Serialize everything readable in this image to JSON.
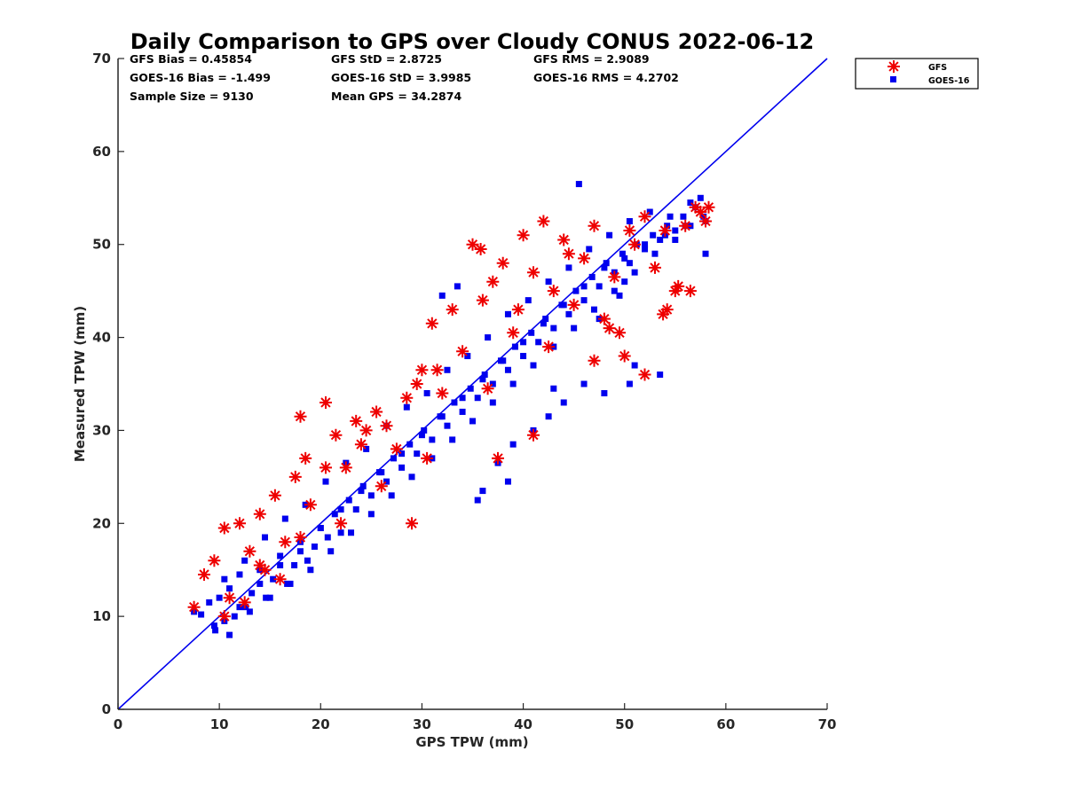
{
  "chart_data": {
    "type": "scatter",
    "title": "Daily Comparison to GPS over Cloudy CONUS 2022-06-12",
    "xlabel": "GPS TPW (mm)",
    "ylabel": "Measured TPW (mm)",
    "xlim": [
      0,
      70
    ],
    "ylim": [
      0,
      70
    ],
    "xticks": [
      "0",
      "10",
      "20",
      "30",
      "40",
      "50",
      "60",
      "70"
    ],
    "yticks": [
      "0",
      "10",
      "20",
      "30",
      "40",
      "50",
      "60",
      "70"
    ],
    "grid": false,
    "legend_position": "top-right-outside",
    "reference_line": {
      "from": [
        0,
        0
      ],
      "to": [
        70,
        70
      ],
      "color": "#0000ee"
    },
    "stats": [
      [
        "GFS Bias = 0.45854",
        "GFS StD = 2.8725",
        "GFS RMS = 2.9089"
      ],
      [
        "GOES-16 Bias = -1.499",
        "GOES-16 StD = 3.9985",
        "GOES-16 RMS = 4.2702"
      ],
      [
        "Sample Size = 9130",
        "Mean GPS = 34.2874",
        ""
      ]
    ],
    "series": [
      {
        "name": "GOES-16",
        "marker": "square",
        "color": "#0000ee",
        "x": [
          7.5,
          8.2,
          9.0,
          9.6,
          10.0,
          10.5,
          11.0,
          11.5,
          12.0,
          12.6,
          13.2,
          14.0,
          14.6,
          15.3,
          16.0,
          16.7,
          17.4,
          18.0,
          18.7,
          19.4,
          20.0,
          20.7,
          21.4,
          22.0,
          22.8,
          23.5,
          24.2,
          25.0,
          25.8,
          26.5,
          27.2,
          28.0,
          28.8,
          29.5,
          30.2,
          31.0,
          31.8,
          32.5,
          33.2,
          34.0,
          34.8,
          35.5,
          36.2,
          37.0,
          37.8,
          38.5,
          39.2,
          40.0,
          40.8,
          41.5,
          42.2,
          43.0,
          43.8,
          44.5,
          45.2,
          46.0,
          46.8,
          47.5,
          48.2,
          49.0,
          49.8,
          50.5,
          51.2,
          52.0,
          52.8,
          53.5,
          54.2,
          55.0,
          55.8,
          56.5,
          57.0,
          57.8,
          58.0,
          10.5,
          12.5,
          14.5,
          16.5,
          18.5,
          20.5,
          22.5,
          24.5,
          26.5,
          28.5,
          30.5,
          32.5,
          34.5,
          36.5,
          38.5,
          40.5,
          42.5,
          44.5,
          46.5,
          48.5,
          50.5,
          52.5,
          54.5,
          56.5,
          11.0,
          13.0,
          15.0,
          17.0,
          19.0,
          21.0,
          23.0,
          25.0,
          27.0,
          29.0,
          31.0,
          33.0,
          35.0,
          37.0,
          39.0,
          41.0,
          43.0,
          45.0,
          47.0,
          49.0,
          51.0,
          53.0,
          55.0,
          57.5,
          9.5,
          12.0,
          14.0,
          16.0,
          18.0,
          20.0,
          22.0,
          24.0,
          26.0,
          28.0,
          30.0,
          32.0,
          34.0,
          36.0,
          38.0,
          40.0,
          42.0,
          44.0,
          46.0,
          48.0,
          50.0,
          52.0,
          54.0,
          56.0,
          58.0,
          45.5,
          46.0,
          43.0,
          48.0,
          50.5,
          51.0,
          53.5,
          42.5,
          38.5,
          35.5,
          37.5,
          36.0,
          39.0,
          47.5,
          49.5,
          50.0,
          44.0,
          41.0,
          33.5,
          32.0
        ],
        "y": [
          10.5,
          10.2,
          11.5,
          8.5,
          12.0,
          9.5,
          13.0,
          10.0,
          14.5,
          11.0,
          12.5,
          15.0,
          12.0,
          14.0,
          16.5,
          13.5,
          15.5,
          18.0,
          16.0,
          17.5,
          19.5,
          18.5,
          21.0,
          19.0,
          22.5,
          21.5,
          24.0,
          23.0,
          25.5,
          24.5,
          27.0,
          26.0,
          28.5,
          27.5,
          30.0,
          29.0,
          31.5,
          30.5,
          33.0,
          32.0,
          34.5,
          33.5,
          36.0,
          35.0,
          37.5,
          36.5,
          39.0,
          38.0,
          40.5,
          39.5,
          42.0,
          41.0,
          43.5,
          42.5,
          45.0,
          44.0,
          46.5,
          45.5,
          48.0,
          47.0,
          49.0,
          48.0,
          50.0,
          49.5,
          51.0,
          50.5,
          52.0,
          51.5,
          53.0,
          52.0,
          54.0,
          53.0,
          52.5,
          14.0,
          16.0,
          18.5,
          20.5,
          22.0,
          24.5,
          26.5,
          28.0,
          30.5,
          32.5,
          34.0,
          36.5,
          38.0,
          40.0,
          42.5,
          44.0,
          46.0,
          47.5,
          49.5,
          51.0,
          52.5,
          53.5,
          53.0,
          54.5,
          8.0,
          10.5,
          12.0,
          13.5,
          15.0,
          17.0,
          19.0,
          21.0,
          23.0,
          25.0,
          27.0,
          29.0,
          31.0,
          33.0,
          35.0,
          37.0,
          39.0,
          41.0,
          43.0,
          45.0,
          47.0,
          49.0,
          50.5,
          55.0,
          9.0,
          11.0,
          13.5,
          15.5,
          17.0,
          19.5,
          21.5,
          23.5,
          25.5,
          27.5,
          29.5,
          31.5,
          33.5,
          35.5,
          37.5,
          39.5,
          41.5,
          43.5,
          45.5,
          47.5,
          48.5,
          50.0,
          51.0,
          52.0,
          49.0,
          56.5,
          35.0,
          34.5,
          34.0,
          35.0,
          37.0,
          36.0,
          31.5,
          24.5,
          22.5,
          26.5,
          23.5,
          28.5,
          42.0,
          44.5,
          46.0,
          33.0,
          30.0,
          45.5,
          44.5
        ]
      },
      {
        "name": "GFS",
        "marker": "asterisk",
        "color": "#ee0000",
        "x": [
          7.5,
          8.5,
          9.5,
          10.5,
          11.0,
          12.0,
          13.0,
          14.0,
          14.5,
          15.5,
          16.5,
          17.5,
          18.0,
          18.5,
          19.0,
          20.5,
          21.5,
          22.5,
          23.5,
          24.5,
          25.5,
          26.5,
          27.5,
          28.5,
          29.5,
          30.0,
          31.0,
          32.0,
          33.0,
          34.0,
          35.0,
          35.8,
          36.0,
          37.0,
          38.0,
          39.0,
          40.0,
          41.0,
          42.0,
          43.0,
          44.0,
          45.0,
          46.0,
          47.0,
          48.0,
          49.0,
          50.0,
          51.0,
          52.0,
          53.0,
          54.0,
          55.0,
          56.0,
          57.0,
          57.5,
          58.0,
          58.3,
          54.2,
          53.8,
          55.3,
          56.5,
          49.5,
          48.5,
          52.0,
          41.0,
          37.5,
          29.0,
          26.0,
          20.5,
          18.0,
          12.5,
          10.5,
          16.0,
          24.0,
          31.5,
          39.5,
          44.5,
          47.0,
          50.5,
          42.5,
          36.5,
          30.5,
          22.0,
          14.0
        ],
        "y": [
          11.0,
          14.5,
          16.0,
          19.5,
          12.0,
          20.0,
          17.0,
          21.0,
          15.0,
          23.0,
          18.0,
          25.0,
          31.5,
          27.0,
          22.0,
          33.0,
          29.5,
          26.0,
          31.0,
          30.0,
          32.0,
          30.5,
          28.0,
          33.5,
          35.0,
          36.5,
          41.5,
          34.0,
          43.0,
          38.5,
          50.0,
          49.5,
          44.0,
          46.0,
          48.0,
          40.5,
          51.0,
          47.0,
          52.5,
          45.0,
          50.5,
          43.5,
          48.5,
          37.5,
          42.0,
          46.5,
          38.0,
          50.0,
          53.0,
          47.5,
          51.5,
          45.0,
          52.0,
          54.0,
          53.5,
          52.5,
          54.0,
          43.0,
          42.5,
          45.5,
          45.0,
          40.5,
          41.0,
          36.0,
          29.5,
          27.0,
          20.0,
          24.0,
          26.0,
          18.5,
          11.5,
          10.0,
          14.0,
          28.5,
          36.5,
          43.0,
          49.0,
          52.0,
          51.5,
          39.0,
          34.5,
          27.0,
          20.0,
          15.5
        ]
      }
    ]
  }
}
